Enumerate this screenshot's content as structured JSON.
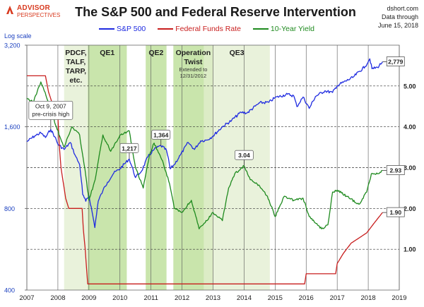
{
  "header": {
    "logo_main": "ADVISOR",
    "logo_sub": "PERSPECTIVES",
    "title": "The S&P 500 and Federal Reserve Intervention",
    "source": "dshort.com",
    "data_through_1": "Data through",
    "data_through_2": "June 15, 2018",
    "log_scale": "Log scale"
  },
  "colors": {
    "sp500": "#1f2be0",
    "ffr": "#c81e1e",
    "yield": "#1e8a1e",
    "band_light": "#e2eecf",
    "band_dark": "#bfe09e"
  },
  "chart_data": {
    "type": "line",
    "x_range": [
      2007,
      2019
    ],
    "x_ticks": [
      "2007",
      "2008",
      "2009",
      "2010",
      "2011",
      "2012",
      "2013",
      "2014",
      "2015",
      "2016",
      "2017",
      "2018",
      "2019"
    ],
    "left_axis": {
      "scale": "log",
      "range": [
        400,
        3200
      ],
      "ticks": [
        "400",
        "800",
        "1,600",
        "3,200"
      ]
    },
    "right_axis": {
      "range": [
        0,
        6
      ],
      "ticks": [
        "1.00",
        "2.00",
        "3.00",
        "4.00",
        "5.00"
      ]
    },
    "series": [
      {
        "name": "S&P 500",
        "axis": "left",
        "points": [
          [
            2007.0,
            1410
          ],
          [
            2007.25,
            1480
          ],
          [
            2007.45,
            1520
          ],
          [
            2007.6,
            1460
          ],
          [
            2007.77,
            1565
          ],
          [
            2007.9,
            1470
          ],
          [
            2008.0,
            1380
          ],
          [
            2008.2,
            1320
          ],
          [
            2008.4,
            1400
          ],
          [
            2008.55,
            1260
          ],
          [
            2008.7,
            1160
          ],
          [
            2008.8,
            900
          ],
          [
            2008.9,
            850
          ],
          [
            2009.0,
            890
          ],
          [
            2009.1,
            780
          ],
          [
            2009.19,
            680
          ],
          [
            2009.3,
            850
          ],
          [
            2009.45,
            930
          ],
          [
            2009.6,
            1000
          ],
          [
            2009.8,
            1080
          ],
          [
            2010.0,
            1120
          ],
          [
            2010.3,
            1217
          ],
          [
            2010.5,
            1040
          ],
          [
            2010.7,
            1100
          ],
          [
            2010.9,
            1240
          ],
          [
            2011.1,
            1320
          ],
          [
            2011.32,
            1364
          ],
          [
            2011.5,
            1310
          ],
          [
            2011.62,
            1120
          ],
          [
            2011.75,
            1160
          ],
          [
            2011.95,
            1260
          ],
          [
            2012.2,
            1400
          ],
          [
            2012.4,
            1320
          ],
          [
            2012.6,
            1420
          ],
          [
            2012.8,
            1430
          ],
          [
            2013.0,
            1480
          ],
          [
            2013.3,
            1600
          ],
          [
            2013.6,
            1690
          ],
          [
            2013.9,
            1810
          ],
          [
            2014.1,
            1800
          ],
          [
            2014.5,
            1960
          ],
          [
            2014.8,
            1970
          ],
          [
            2015.0,
            2050
          ],
          [
            2015.4,
            2110
          ],
          [
            2015.6,
            2080
          ],
          [
            2015.7,
            1900
          ],
          [
            2015.9,
            2060
          ],
          [
            2016.1,
            1870
          ],
          [
            2016.3,
            2070
          ],
          [
            2016.6,
            2170
          ],
          [
            2016.85,
            2140
          ],
          [
            2017.0,
            2270
          ],
          [
            2017.5,
            2430
          ],
          [
            2017.9,
            2670
          ],
          [
            2018.05,
            2850
          ],
          [
            2018.12,
            2620
          ],
          [
            2018.3,
            2650
          ],
          [
            2018.46,
            2779
          ]
        ],
        "end_label": "2,779"
      },
      {
        "name": "Federal Funds Rate",
        "axis": "right",
        "points": [
          [
            2007.0,
            5.25
          ],
          [
            2007.6,
            5.25
          ],
          [
            2007.7,
            4.85
          ],
          [
            2007.85,
            4.5
          ],
          [
            2008.0,
            4.25
          ],
          [
            2008.05,
            3.5
          ],
          [
            2008.1,
            3.0
          ],
          [
            2008.25,
            2.25
          ],
          [
            2008.35,
            2.0
          ],
          [
            2008.78,
            2.0
          ],
          [
            2008.82,
            1.5
          ],
          [
            2008.88,
            1.0
          ],
          [
            2008.96,
            0.15
          ],
          [
            2009.0,
            0.15
          ],
          [
            2015.95,
            0.15
          ],
          [
            2016.0,
            0.4
          ],
          [
            2016.95,
            0.4
          ],
          [
            2017.0,
            0.65
          ],
          [
            2017.2,
            0.9
          ],
          [
            2017.45,
            1.15
          ],
          [
            2017.95,
            1.4
          ],
          [
            2018.2,
            1.65
          ],
          [
            2018.46,
            1.9
          ]
        ],
        "end_label": "1.90"
      },
      {
        "name": "10-Year Yield",
        "axis": "right",
        "points": [
          [
            2007.0,
            4.7
          ],
          [
            2007.2,
            4.6
          ],
          [
            2007.45,
            5.1
          ],
          [
            2007.7,
            4.6
          ],
          [
            2007.95,
            4.0
          ],
          [
            2008.2,
            3.5
          ],
          [
            2008.45,
            4.0
          ],
          [
            2008.7,
            3.8
          ],
          [
            2008.9,
            2.8
          ],
          [
            2009.0,
            2.2
          ],
          [
            2009.2,
            2.7
          ],
          [
            2009.45,
            3.8
          ],
          [
            2009.7,
            3.4
          ],
          [
            2010.0,
            3.8
          ],
          [
            2010.3,
            3.9
          ],
          [
            2010.5,
            3.0
          ],
          [
            2010.75,
            2.5
          ],
          [
            2010.95,
            3.3
          ],
          [
            2011.1,
            3.6
          ],
          [
            2011.4,
            3.1
          ],
          [
            2011.6,
            2.6
          ],
          [
            2011.75,
            2.0
          ],
          [
            2012.0,
            1.9
          ],
          [
            2012.3,
            2.2
          ],
          [
            2012.55,
            1.5
          ],
          [
            2012.8,
            1.7
          ],
          [
            2013.0,
            1.9
          ],
          [
            2013.3,
            1.7
          ],
          [
            2013.5,
            2.5
          ],
          [
            2013.7,
            2.85
          ],
          [
            2014.0,
            3.04
          ],
          [
            2014.2,
            2.7
          ],
          [
            2014.5,
            2.55
          ],
          [
            2014.75,
            2.3
          ],
          [
            2015.0,
            1.8
          ],
          [
            2015.3,
            2.3
          ],
          [
            2015.6,
            2.2
          ],
          [
            2015.9,
            2.25
          ],
          [
            2016.1,
            1.8
          ],
          [
            2016.5,
            1.5
          ],
          [
            2016.7,
            1.6
          ],
          [
            2016.85,
            2.4
          ],
          [
            2017.0,
            2.45
          ],
          [
            2017.3,
            2.3
          ],
          [
            2017.7,
            2.1
          ],
          [
            2017.95,
            2.4
          ],
          [
            2018.1,
            2.85
          ],
          [
            2018.3,
            2.85
          ],
          [
            2018.46,
            2.93
          ]
        ],
        "end_label": "2.93"
      }
    ],
    "bands": [
      {
        "label_lines": [
          "PDCF,",
          "TALF,",
          "TARP,",
          "etc."
        ],
        "start": 2008.2,
        "end": 2008.96,
        "shade": "light"
      },
      {
        "label_lines": [
          "QE1"
        ],
        "start": 2008.96,
        "end": 2010.22,
        "shade": "dark"
      },
      {
        "label_lines": [
          "QE2"
        ],
        "start": 2010.83,
        "end": 2011.5,
        "shade": "dark"
      },
      {
        "label_lines": [
          "Operation",
          "Twist"
        ],
        "note_lines": [
          "Extended to",
          "12/31/2012"
        ],
        "start": 2011.72,
        "end": 2013.0,
        "shade": "dark"
      },
      {
        "label_lines": [
          "QE3"
        ],
        "start": 2012.7,
        "end": 2014.83,
        "shade": "light"
      }
    ],
    "annotations": [
      {
        "lines": [
          "Oct 9, 2007",
          "pre-crisis high"
        ],
        "x": 2007.77,
        "value": 1565,
        "axis": "left"
      },
      {
        "lines": [
          "1,217"
        ],
        "x": 2010.3,
        "value": 1217,
        "axis": "left"
      },
      {
        "lines": [
          "1,364"
        ],
        "x": 2011.32,
        "value": 1364,
        "axis": "left"
      },
      {
        "lines": [
          "3.04"
        ],
        "x": 2014.0,
        "value": 3.04,
        "axis": "right"
      }
    ]
  }
}
